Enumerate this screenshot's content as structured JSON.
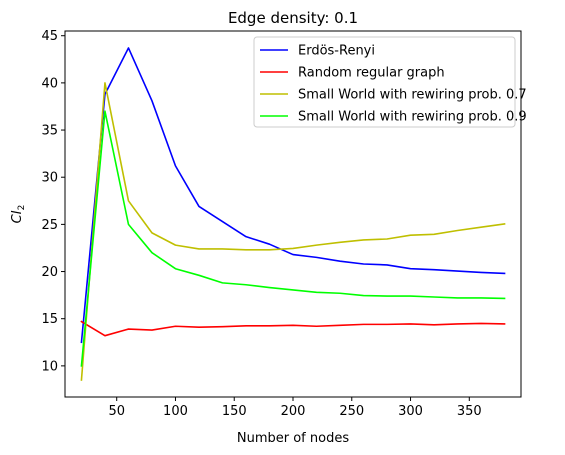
{
  "chart_data": {
    "type": "line",
    "title": "Edge density: 0.1",
    "xlabel": "Number of nodes",
    "ylabel_main": "CI",
    "ylabel_sub": "2",
    "xlim": [
      6,
      394
    ],
    "ylim": [
      6.7,
      45.5
    ],
    "xticks": [
      50,
      100,
      150,
      200,
      250,
      300,
      350
    ],
    "yticks": [
      10,
      15,
      20,
      25,
      30,
      35,
      40,
      45
    ],
    "legend_position": "top-right",
    "grid": false,
    "x": [
      20,
      40,
      60,
      80,
      100,
      120,
      140,
      160,
      180,
      200,
      220,
      240,
      260,
      280,
      300,
      320,
      340,
      360,
      380
    ],
    "series": [
      {
        "name": "Erdös-Renyi",
        "color": "#0000ff",
        "values": [
          12.5,
          38.8,
          43.7,
          38.1,
          31.2,
          26.9,
          25.3,
          23.7,
          22.9,
          21.8,
          21.5,
          21.1,
          20.8,
          20.7,
          20.3,
          20.2,
          20.05,
          19.9,
          19.8
        ]
      },
      {
        "name": "Random regular graph",
        "color": "#ff0000",
        "values": [
          14.7,
          13.2,
          13.9,
          13.8,
          14.2,
          14.1,
          14.15,
          14.25,
          14.25,
          14.3,
          14.2,
          14.3,
          14.4,
          14.4,
          14.45,
          14.35,
          14.45,
          14.5,
          14.45
        ]
      },
      {
        "name": "Small World with rewiring prob. 0.7",
        "color": "#bfbf00",
        "values": [
          8.5,
          40.0,
          27.5,
          24.1,
          22.8,
          22.4,
          22.4,
          22.3,
          22.3,
          22.45,
          22.8,
          23.1,
          23.35,
          23.45,
          23.85,
          23.95,
          24.35,
          24.7,
          25.05
        ]
      },
      {
        "name": "Small World with rewiring prob. 0.9",
        "color": "#00ff00",
        "values": [
          10.0,
          37.0,
          25.0,
          22.0,
          20.3,
          19.6,
          18.8,
          18.6,
          18.3,
          18.05,
          17.8,
          17.7,
          17.45,
          17.4,
          17.4,
          17.3,
          17.2,
          17.2,
          17.15
        ]
      }
    ]
  }
}
